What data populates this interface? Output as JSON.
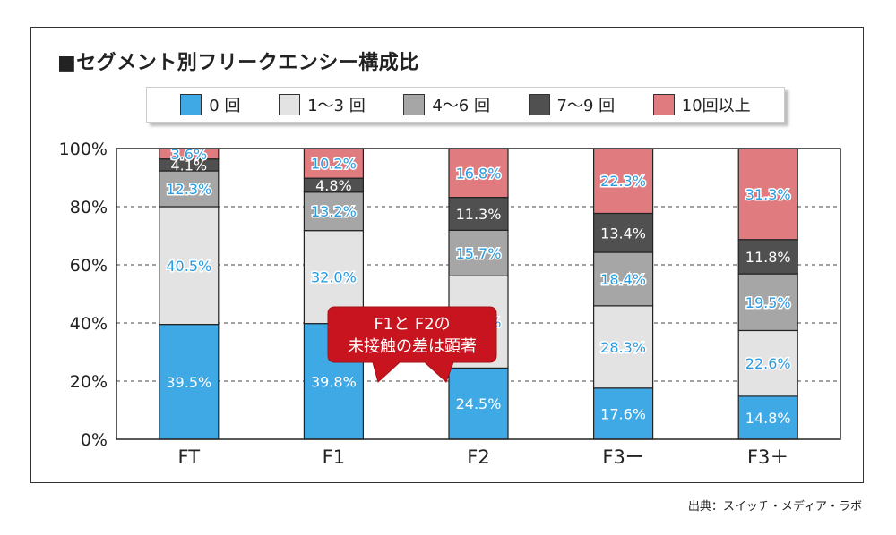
{
  "chart_data": {
    "type": "bar",
    "stacked": true,
    "title": "■セグメント別フリークエンシー構成比",
    "categories": [
      "FT",
      "F1",
      "F2",
      "F3ー",
      "F3＋"
    ],
    "ylim": [
      0,
      100
    ],
    "yticks": [
      "0%",
      "20%",
      "40%",
      "60%",
      "80%",
      "100%"
    ],
    "grid": "dashed horizontal",
    "legend_position": "top",
    "series": [
      {
        "name": "0 回",
        "color": "#3fa9e6",
        "values": [
          39.5,
          39.8,
          24.5,
          17.6,
          14.8
        ],
        "labels": [
          "39.5%",
          "39.8%",
          "24.5%",
          "17.6%",
          "14.8%"
        ]
      },
      {
        "name": "1〜3 回",
        "color": "#e3e3e3",
        "values": [
          40.5,
          32.0,
          31.7,
          28.3,
          22.6
        ],
        "labels": [
          "40.5%",
          "32.0%",
          "31.7%",
          "28.3%",
          "22.6%"
        ]
      },
      {
        "name": "4〜6 回",
        "color": "#a6a6a6",
        "values": [
          12.3,
          13.2,
          15.7,
          18.4,
          19.5
        ],
        "labels": [
          "12.3%",
          "13.2%",
          "15.7%",
          "18.4%",
          "19.5%"
        ]
      },
      {
        "name": "7〜9 回",
        "color": "#505050",
        "values": [
          4.1,
          4.8,
          11.3,
          13.4,
          11.8
        ],
        "labels": [
          "4.1%",
          "4.8%",
          "11.3%",
          "13.4%",
          "11.8%"
        ]
      },
      {
        "name": "10回以上",
        "color": "#e07b80",
        "values": [
          3.6,
          10.2,
          16.8,
          22.3,
          31.3
        ],
        "labels": [
          "3.6%",
          "10.2%",
          "16.8%",
          "22.3%",
          "31.3%"
        ]
      }
    ],
    "annotation": {
      "lines": [
        "F1と F2の",
        "未接触の差は顕著"
      ],
      "color": "#c8141e"
    },
    "label_colors": {
      "light_bg": "#2a9be0",
      "dark_bg": "#ffffff",
      "outline": "#ffffff"
    }
  },
  "source": "出典：スイッチ・メディア・ラボ"
}
